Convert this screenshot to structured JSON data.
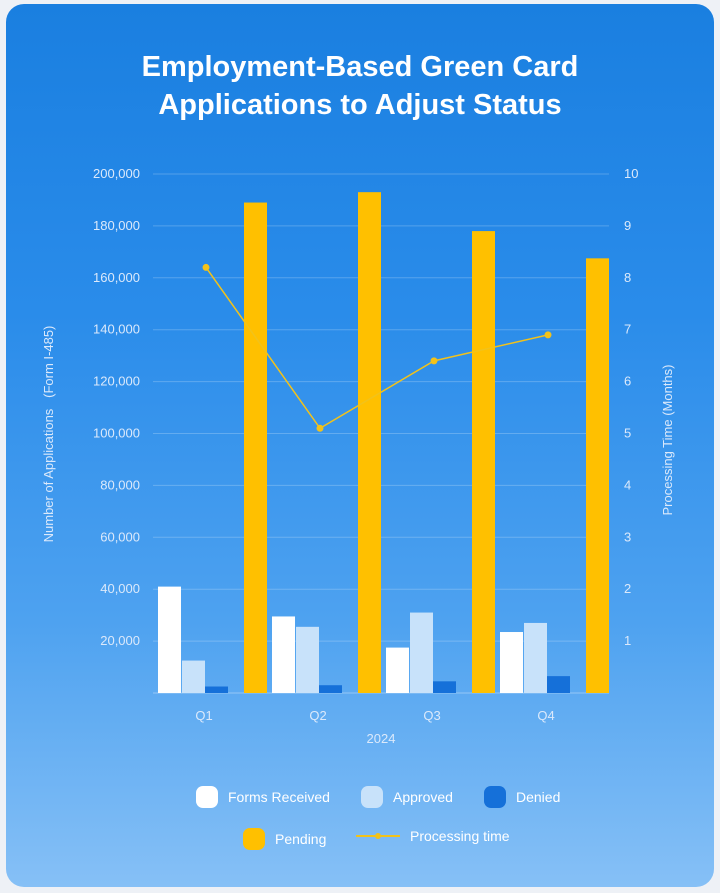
{
  "title_lines": [
    "Employment-Based Green Card",
    "Applications to Adjust Status"
  ],
  "chart_data": {
    "type": "bar",
    "title": "Employment-Based Green Card Applications to Adjust Status",
    "categories": [
      "Q1",
      "Q2",
      "Q3",
      "Q4"
    ],
    "xlabel": "2024",
    "ylabel": "Number of Applications   (Form I-485)",
    "ylabel_right": "Processing Time (Months)",
    "ylim": [
      0,
      200000
    ],
    "ylim_right": [
      0,
      10
    ],
    "yticks": [
      "20,000",
      "40,000",
      "60,000",
      "80,000",
      "100,000",
      "120,000",
      "140,000",
      "160,000",
      "180,000",
      "200,000"
    ],
    "yticks_right": [
      "1",
      "2",
      "3",
      "4",
      "5",
      "6",
      "7",
      "8",
      "9",
      "10"
    ],
    "series": [
      {
        "name": "Forms Received",
        "type": "bar",
        "color": "#ffffff",
        "values": [
          41000,
          29500,
          17500,
          23500
        ]
      },
      {
        "name": "Approved",
        "type": "bar",
        "color": "#c8e2fa",
        "values": [
          12500,
          25500,
          31000,
          27000
        ]
      },
      {
        "name": "Denied",
        "type": "bar",
        "color": "#1570d9",
        "values": [
          2500,
          3000,
          4500,
          6500
        ]
      },
      {
        "name": "Pending",
        "type": "bar",
        "color": "#ffc000",
        "values": [
          189000,
          193000,
          178000,
          167500
        ]
      },
      {
        "name": "Processing time",
        "type": "line",
        "axis": "right",
        "color": "#f2c21a",
        "values": [
          8.2,
          5.1,
          6.4,
          6.9
        ]
      }
    ],
    "grid": true,
    "legend_position": "bottom"
  },
  "legend": {
    "forms_received": "Forms Received",
    "approved": "Approved",
    "denied": "Denied",
    "pending": "Pending",
    "processing_time": "Processing time"
  }
}
